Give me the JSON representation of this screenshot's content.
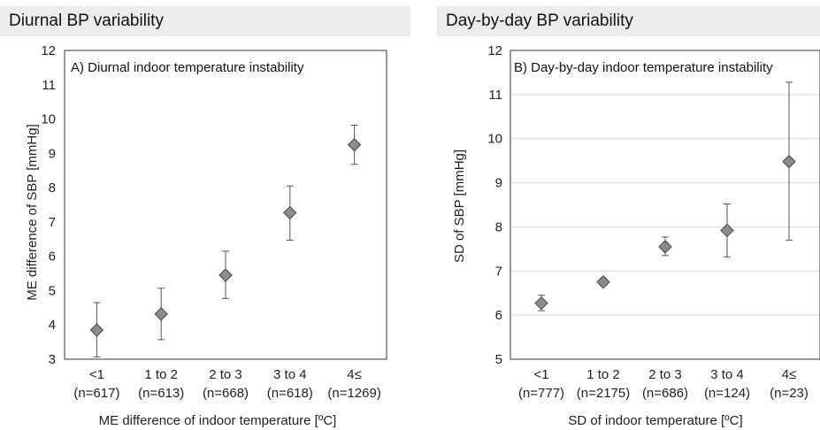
{
  "headers": {
    "left": "Diurnal BP variability",
    "right": "Day-by-day BP variability"
  },
  "chart_data": [
    {
      "type": "scatter",
      "title": "A) Diurnal indoor temperature instability",
      "xlabel": "ME difference of indoor temperature [ºC]",
      "ylabel": "ME difference of SBP [mmHg]",
      "ylim": [
        3,
        12
      ],
      "yticks": [
        3,
        4,
        5,
        6,
        7,
        8,
        9,
        10,
        11,
        12
      ],
      "categories": [
        "<1",
        "1 to 2",
        "2 to 3",
        "3 to 4",
        "4≤"
      ],
      "n_labels": [
        "(n=617)",
        "(n=613)",
        "(n=668)",
        "(n=618)",
        "(n=1269)"
      ],
      "values": [
        3.85,
        4.32,
        5.45,
        7.27,
        9.25
      ],
      "err_low": [
        3.07,
        3.57,
        4.77,
        6.47,
        8.68
      ],
      "err_high": [
        4.65,
        5.07,
        6.15,
        8.05,
        9.82
      ],
      "grid": false,
      "marker": "diamond",
      "marker_color": "#8c8c8c"
    },
    {
      "type": "scatter",
      "title": "B) Day-by-day indoor temperature instability",
      "xlabel": "SD of indoor temperature [ºC]",
      "ylabel": "SD of SBP [mmHg]",
      "ylim": [
        5,
        12
      ],
      "yticks": [
        5,
        6,
        7,
        8,
        9,
        10,
        11,
        12
      ],
      "categories": [
        "<1",
        "1 to 2",
        "2 to 3",
        "3 to 4",
        "4≤"
      ],
      "n_labels": [
        "(n=777)",
        "(n=2175)",
        "(n=686)",
        "(n=124)",
        "(n=23)"
      ],
      "values": [
        6.27,
        6.75,
        7.55,
        7.92,
        9.48
      ],
      "err_low": [
        6.1,
        6.67,
        7.35,
        7.32,
        7.7
      ],
      "err_high": [
        6.45,
        6.83,
        7.77,
        8.52,
        11.28
      ],
      "grid": true,
      "marker": "diamond",
      "marker_color": "#8c8c8c"
    }
  ]
}
